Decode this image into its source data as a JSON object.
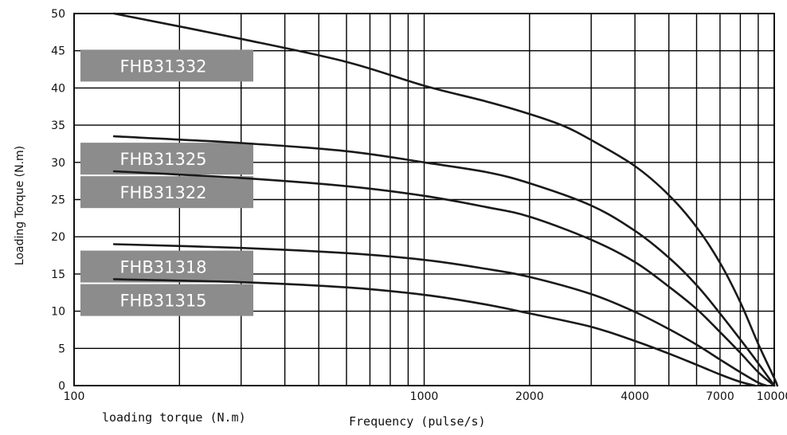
{
  "chart_data": {
    "type": "line",
    "xlabel": "Frequency (pulse/s)",
    "extra_label": "loading torque (N.m)",
    "ylabel": "Loading Torque (N.m)",
    "x_scale": "log",
    "xlim": [
      100,
      10000
    ],
    "ylim": [
      0,
      50
    ],
    "x_ticks": [
      {
        "value": 100,
        "label": "100"
      },
      {
        "value": 1000,
        "label": "1000"
      },
      {
        "value": 2000,
        "label": "2000"
      },
      {
        "value": 4000,
        "label": "4000"
      },
      {
        "value": 7000,
        "label": "7000"
      },
      {
        "value": 10000,
        "label": "10000"
      }
    ],
    "y_ticks": [
      0,
      5,
      10,
      15,
      20,
      25,
      30,
      35,
      40,
      45,
      50
    ],
    "grid": true,
    "series": [
      {
        "name": "FHB31332",
        "x": [
          130,
          300,
          600,
          1000,
          1500,
          2000,
          2500,
          3000,
          4000,
          5000,
          6000,
          7000,
          8000,
          9000,
          10000,
          10200
        ],
        "y": [
          50,
          46.6,
          43.5,
          40.3,
          38.2,
          36.5,
          34.9,
          33,
          29.5,
          25.6,
          21.3,
          16.5,
          11.2,
          5.6,
          1,
          0
        ]
      },
      {
        "name": "FHB31325",
        "x": [
          130,
          300,
          600,
          1000,
          1500,
          2000,
          3000,
          4000,
          5000,
          6000,
          7000,
          8000,
          9000,
          10000
        ],
        "y": [
          33.5,
          32.6,
          31.5,
          30,
          28.7,
          27.2,
          24.2,
          20.8,
          17.2,
          13.5,
          9.7,
          6.2,
          3,
          0
        ]
      },
      {
        "name": "FHB31322",
        "x": [
          130,
          300,
          600,
          1000,
          1500,
          2000,
          3000,
          4000,
          5000,
          6000,
          7000,
          8000,
          9000,
          10000
        ],
        "y": [
          28.8,
          27.9,
          26.8,
          25.5,
          24,
          22.7,
          19.6,
          16.6,
          13.3,
          10.3,
          7.2,
          4.4,
          1.8,
          0
        ]
      },
      {
        "name": "FHB31318",
        "x": [
          130,
          300,
          600,
          1000,
          1500,
          2000,
          3000,
          4000,
          5000,
          6000,
          7000,
          8000,
          9000,
          9500
        ],
        "y": [
          19,
          18.5,
          17.8,
          16.9,
          15.7,
          14.6,
          12.3,
          9.9,
          7.6,
          5.5,
          3.5,
          1.8,
          0.4,
          0
        ]
      },
      {
        "name": "FHB31315",
        "x": [
          130,
          300,
          600,
          1000,
          1500,
          2000,
          3000,
          4000,
          5000,
          6000,
          7000,
          8000,
          8800
        ],
        "y": [
          14.3,
          13.9,
          13.2,
          12.2,
          10.9,
          9.7,
          7.9,
          6,
          4.3,
          2.8,
          1.5,
          0.5,
          0
        ]
      }
    ],
    "series_label_boxes": [
      {
        "name": "FHB31332",
        "center_value": 43
      },
      {
        "name": "FHB31325",
        "center_value": 30.5
      },
      {
        "name": "FHB31322",
        "center_value": 26
      },
      {
        "name": "FHB31318",
        "center_value": 16
      },
      {
        "name": "FHB31315",
        "center_value": 11.5
      }
    ],
    "colors": {
      "line": "#1a1a1a",
      "grid": "#000000",
      "label_box": "#8c8c8c",
      "label_text": "#ffffff"
    }
  }
}
